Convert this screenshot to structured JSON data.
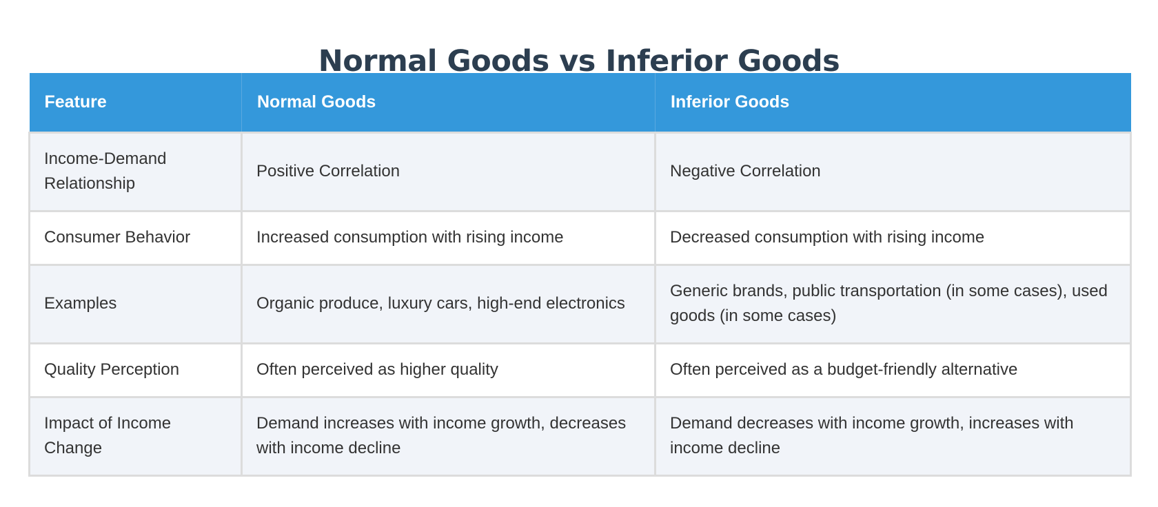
{
  "title": "Normal Goods vs Inferior Goods",
  "table": {
    "headers": [
      "Feature",
      "Normal Goods",
      "Inferior Goods"
    ],
    "rows": [
      [
        "Income-Demand Relationship",
        "Positive Correlation",
        "Negative Correlation"
      ],
      [
        "Consumer Behavior",
        "Increased consumption with rising income",
        "Decreased consumption with rising income"
      ],
      [
        "Examples",
        "Organic produce, luxury cars, high-end electronics",
        "Generic brands, public transportation (in some cases), used goods (in some cases)"
      ],
      [
        "Quality Perception",
        "Often perceived as higher quality",
        "Often perceived as a budget-friendly alternative"
      ],
      [
        "Impact of Income Change",
        "Demand increases with income growth, decreases with income decline",
        "Demand decreases with income growth, increases with income decline"
      ]
    ]
  },
  "colors": {
    "title": "#2c3e50",
    "header_bg": "#3498db",
    "header_text": "#ffffff",
    "row_alt_bg": "#f1f4f9",
    "row_bg": "#ffffff",
    "cell_text": "#333333",
    "border": "#dcdcdc"
  }
}
